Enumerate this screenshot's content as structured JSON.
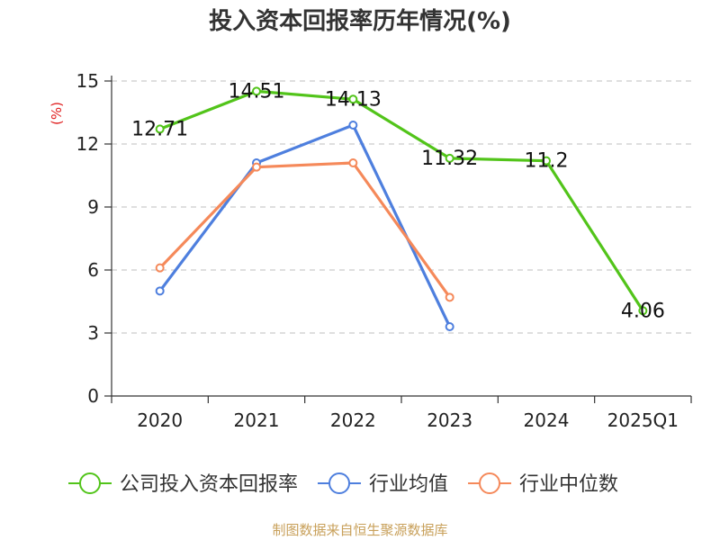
{
  "chart_data": {
    "type": "line",
    "title": "投入资本回报率历年情况(%)",
    "ylabel": "(%)",
    "xlabel": "",
    "categories": [
      "2020",
      "2021",
      "2022",
      "2023",
      "2024",
      "2025Q1"
    ],
    "ylim": [
      0,
      15
    ],
    "yticks": [
      0,
      3,
      6,
      9,
      12,
      15
    ],
    "grid": true,
    "legend_position": "bottom",
    "series": [
      {
        "name": "公司投入资本回报率",
        "color": "#52c41a",
        "values": [
          12.71,
          14.51,
          14.13,
          11.32,
          11.2,
          4.06
        ],
        "labels": [
          "12.71",
          "14.51",
          "14.13",
          "11.32",
          "11.2",
          "4.06"
        ]
      },
      {
        "name": "行业均值",
        "color": "#4e7fde",
        "values": [
          5.0,
          11.1,
          12.9,
          3.3,
          null,
          null
        ]
      },
      {
        "name": "行业中位数",
        "color": "#f5895a",
        "values": [
          6.1,
          10.9,
          11.1,
          4.7,
          null,
          null
        ]
      }
    ],
    "colors": {
      "axis": "#333333",
      "grid": "#cccccc",
      "ylabel": "#e02020",
      "source": "#c8a05a"
    }
  },
  "footer": {
    "source": "制图数据来自恒生聚源数据库"
  }
}
